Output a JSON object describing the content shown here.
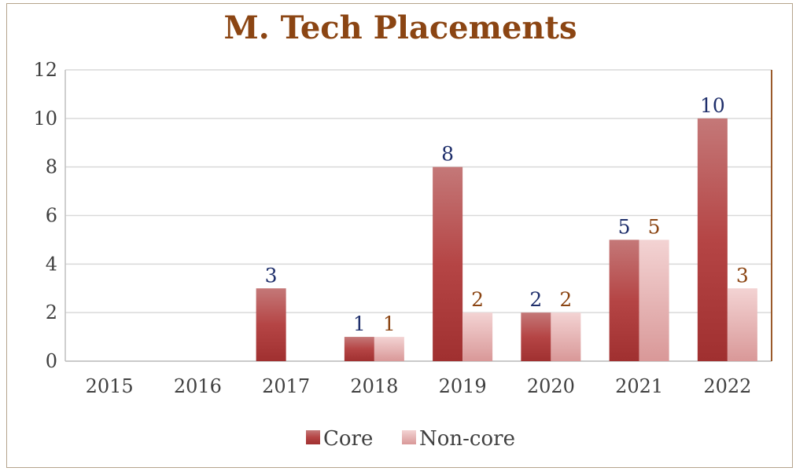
{
  "chart_data": {
    "type": "bar",
    "title": "M. Tech Placements",
    "xlabel": "",
    "ylabel": "",
    "categories": [
      "2015",
      "2016",
      "2017",
      "2018",
      "2019",
      "2020",
      "2021",
      "2022"
    ],
    "series": [
      {
        "name": "Core",
        "values": [
          0,
          0,
          3,
          1,
          8,
          2,
          5,
          10
        ],
        "color": "#a83232",
        "label_color": "#1f2f6b"
      },
      {
        "name": "Non-core",
        "values": [
          0,
          0,
          0,
          1,
          2,
          2,
          5,
          3
        ],
        "color": "#e6aaaa",
        "label_color": "#8b4513"
      }
    ],
    "ylim": [
      0,
      12
    ],
    "yticks": [
      0,
      2,
      4,
      6,
      8,
      10,
      12
    ],
    "data_labels": {
      "core": [
        "",
        "",
        "3",
        "1",
        "8",
        "2",
        "5",
        "10"
      ],
      "noncore": [
        "",
        "",
        "",
        "1",
        "2",
        "2",
        "5",
        "3"
      ]
    },
    "grid": true,
    "legend_position": "bottom"
  }
}
